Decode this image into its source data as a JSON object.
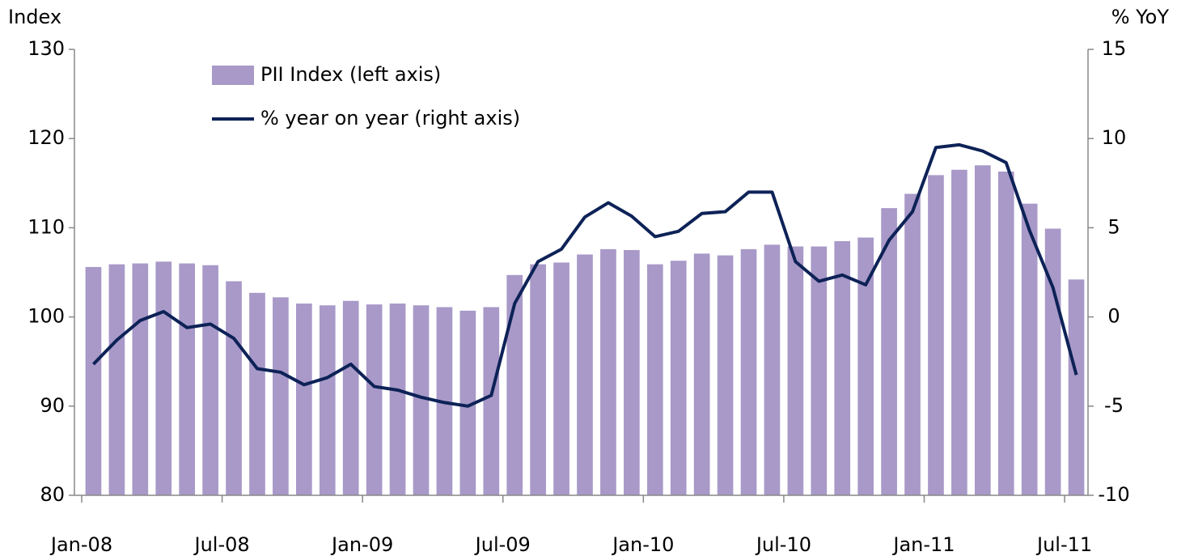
{
  "chart_data": {
    "type": "bar_line",
    "y_label": "Index",
    "y2_label": "% YoY",
    "categories": [
      "Jan-08",
      null,
      null,
      null,
      null,
      null,
      "Jul-08",
      null,
      null,
      null,
      null,
      null,
      "Jan-09",
      null,
      null,
      null,
      null,
      null,
      "Jul-09",
      null,
      null,
      null,
      null,
      null,
      "Jan-10",
      null,
      null,
      null,
      null,
      null,
      "Jul-10",
      null,
      null,
      null,
      null,
      null,
      "Jan-11",
      null,
      null,
      null,
      null,
      null,
      "Jul-11"
    ],
    "series": [
      {
        "name": "PII Index (left axis)",
        "type": "bar",
        "color": "#a899c8",
        "values": [
          105.6,
          105.9,
          106.0,
          106.2,
          106.0,
          105.8,
          104.0,
          102.7,
          102.2,
          101.5,
          101.3,
          101.8,
          101.4,
          101.5,
          101.3,
          101.1,
          100.7,
          101.1,
          104.7,
          105.9,
          106.1,
          107.0,
          107.6,
          107.5,
          105.9,
          106.3,
          107.1,
          106.9,
          107.6,
          108.1,
          107.9,
          107.9,
          108.5,
          108.9,
          112.2,
          113.8,
          115.9,
          116.5,
          117.0,
          116.3,
          112.7,
          109.9,
          104.2
        ]
      },
      {
        "name": "% year on year (right axis)",
        "type": "line",
        "axis": "y2",
        "color": "#0d2257",
        "values": [
          -2.65,
          -1.3,
          -0.2,
          0.3,
          -0.6,
          -0.4,
          -1.2,
          -2.9,
          -3.1,
          -3.8,
          -3.4,
          -2.65,
          -3.9,
          -4.1,
          -4.5,
          -4.8,
          -5.0,
          -4.4,
          0.75,
          3.1,
          3.8,
          5.6,
          6.4,
          5.65,
          4.5,
          4.8,
          5.8,
          5.9,
          7.0,
          7.0,
          3.1,
          2.0,
          2.35,
          1.8,
          4.3,
          5.9,
          9.5,
          9.65,
          9.3,
          8.65,
          4.85,
          1.65,
          -3.25
        ]
      }
    ],
    "ylim": [
      80,
      130
    ],
    "yticks": [
      80,
      90,
      100,
      110,
      120,
      130
    ],
    "y2lim": [
      -10,
      15
    ],
    "y2ticks": [
      -10,
      -5,
      0,
      5,
      10,
      15
    ],
    "grid": false,
    "legend": "upper left"
  }
}
